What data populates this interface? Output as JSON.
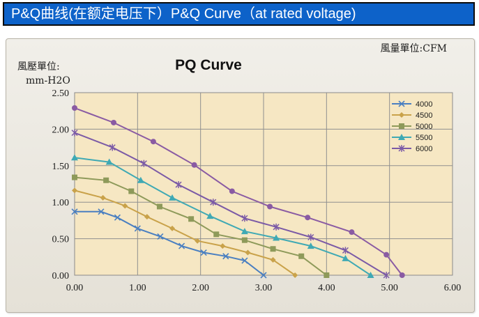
{
  "header": {
    "text": "P&Q曲线(在额定电压下）P&Q Curve（at rated voltage)"
  },
  "chart_data": {
    "type": "line",
    "title": "PQ Curve",
    "ylabel_line1": "風壓單位:",
    "ylabel_line2": "mm-H2O",
    "xlabel": "風量單位:CFM",
    "xlim": [
      0,
      6
    ],
    "ylim": [
      0,
      2.5
    ],
    "xticks": [
      "0.00",
      "1.00",
      "2.00",
      "3.00",
      "4.00",
      "5.00",
      "6.00"
    ],
    "yticks": [
      "0.00",
      "0.50",
      "1.00",
      "1.50",
      "2.00",
      "2.50"
    ],
    "grid": true,
    "legend_position": "top-right",
    "series": [
      {
        "name": "4000",
        "color": "#4a7fc1",
        "marker": "x",
        "points": [
          [
            0,
            0.87
          ],
          [
            0.42,
            0.87
          ],
          [
            0.68,
            0.79
          ],
          [
            1.0,
            0.64
          ],
          [
            1.36,
            0.53
          ],
          [
            1.7,
            0.4
          ],
          [
            2.05,
            0.31
          ],
          [
            2.4,
            0.26
          ],
          [
            2.7,
            0.2
          ],
          [
            3.0,
            0.0
          ]
        ]
      },
      {
        "name": "4500",
        "color": "#c9a24a",
        "marker": "diamond",
        "points": [
          [
            0,
            1.16
          ],
          [
            0.45,
            1.06
          ],
          [
            0.8,
            0.95
          ],
          [
            1.15,
            0.8
          ],
          [
            1.55,
            0.64
          ],
          [
            1.95,
            0.47
          ],
          [
            2.35,
            0.4
          ],
          [
            2.75,
            0.31
          ],
          [
            3.15,
            0.21
          ],
          [
            3.5,
            0.0
          ]
        ]
      },
      {
        "name": "5000",
        "color": "#8e9a5a",
        "marker": "square",
        "points": [
          [
            0,
            1.34
          ],
          [
            0.5,
            1.3
          ],
          [
            0.9,
            1.15
          ],
          [
            1.35,
            0.94
          ],
          [
            1.85,
            0.77
          ],
          [
            2.25,
            0.56
          ],
          [
            2.7,
            0.48
          ],
          [
            3.15,
            0.36
          ],
          [
            3.6,
            0.26
          ],
          [
            4.0,
            0.0
          ]
        ]
      },
      {
        "name": "5500",
        "color": "#3fa9b4",
        "marker": "triangle",
        "points": [
          [
            0,
            1.61
          ],
          [
            0.55,
            1.55
          ],
          [
            1.05,
            1.3
          ],
          [
            1.55,
            1.06
          ],
          [
            2.15,
            0.81
          ],
          [
            2.7,
            0.6
          ],
          [
            3.2,
            0.51
          ],
          [
            3.75,
            0.4
          ],
          [
            4.3,
            0.23
          ],
          [
            4.7,
            0.0
          ]
        ]
      },
      {
        "name": "6000",
        "color": "#7b5aa6",
        "marker": "star",
        "points": [
          [
            0,
            1.95
          ],
          [
            0.6,
            1.75
          ],
          [
            1.1,
            1.53
          ],
          [
            1.65,
            1.24
          ],
          [
            2.2,
            1.0
          ],
          [
            2.7,
            0.78
          ],
          [
            3.2,
            0.66
          ],
          [
            3.75,
            0.52
          ],
          [
            4.3,
            0.34
          ],
          [
            4.95,
            0.0
          ]
        ]
      },
      {
        "name": "6000-circle",
        "color": "#8a5ba3",
        "marker": "circle",
        "legend": false,
        "points": [
          [
            0,
            2.29
          ],
          [
            0.62,
            2.09
          ],
          [
            1.25,
            1.83
          ],
          [
            1.9,
            1.51
          ],
          [
            2.5,
            1.15
          ],
          [
            3.1,
            0.94
          ],
          [
            3.7,
            0.79
          ],
          [
            4.4,
            0.59
          ],
          [
            4.95,
            0.28
          ],
          [
            5.2,
            0.0
          ]
        ]
      }
    ]
  }
}
